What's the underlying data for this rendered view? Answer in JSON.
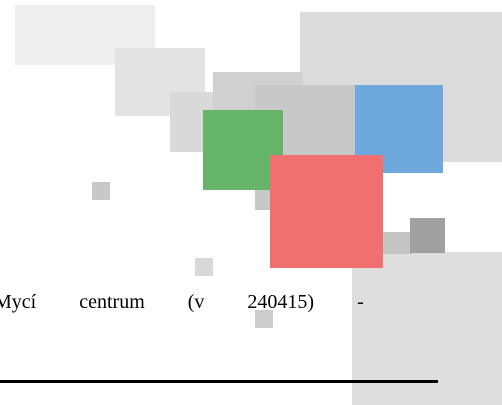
{
  "document": {
    "text": "Mycí centrum (v 240415) -"
  }
}
